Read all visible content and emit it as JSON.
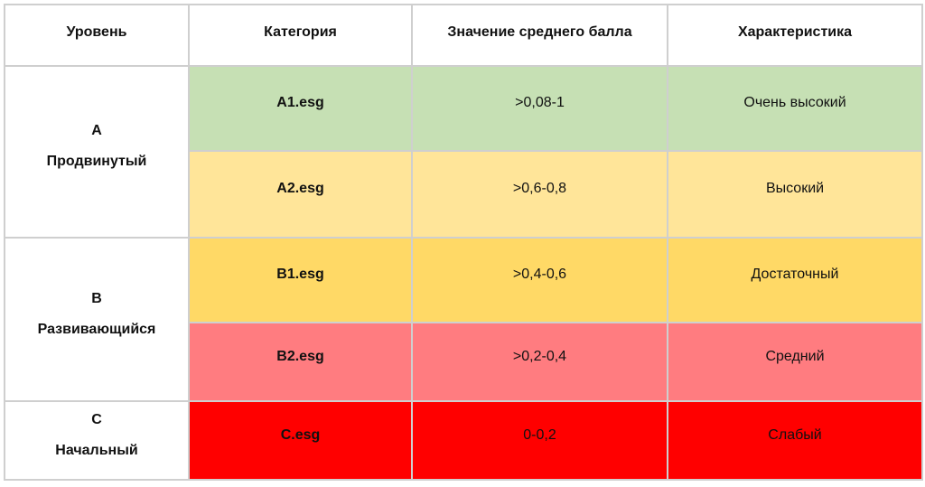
{
  "table": {
    "headers": [
      "Уровень",
      "Категория",
      "Значение среднего балла",
      "Характеристика"
    ],
    "levels": [
      {
        "code": "A",
        "name": "Продвинутый"
      },
      {
        "code": "B",
        "name": "Развивающийся"
      },
      {
        "code": "C",
        "name": "Начальный"
      }
    ],
    "rows": [
      {
        "category": "A1.esg",
        "score": ">0,08-1",
        "description": "Очень высокий",
        "color": "#c6e0b4"
      },
      {
        "category": "A2.esg",
        "score": ">0,6-0,8",
        "description": "Высокий",
        "color": "#ffe599"
      },
      {
        "category": "B1.esg",
        "score": ">0,4-0,6",
        "description": "Достаточный",
        "color": "#ffd966"
      },
      {
        "category": "B2.esg",
        "score": ">0,2-0,4",
        "description": "Средний",
        "color": "#ff7c80"
      },
      {
        "category": "C.esg",
        "score": "0-0,2",
        "description": "Слабый",
        "color": "#ff0000"
      }
    ]
  }
}
